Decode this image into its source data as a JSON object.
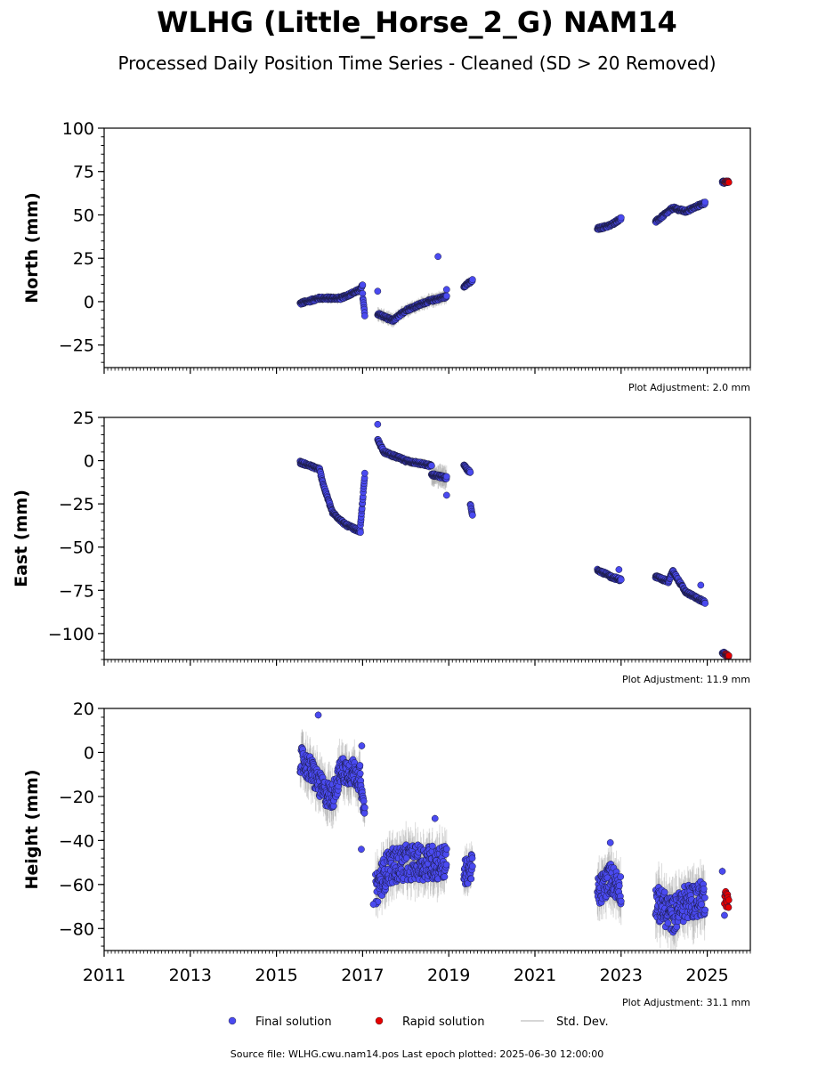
{
  "title": "WLHG (Little_Horse_2_G) NAM14",
  "subtitle": "Processed Daily Position Time Series - Cleaned (SD > 20 Removed)",
  "source": "Source file: WLHG.cwu.nam14.pos  Last epoch plotted: 2025-06-30 12:00:00",
  "legend": [
    {
      "label": "Final solution",
      "color": "#4a4af0"
    },
    {
      "label": "Rapid solution",
      "color": "#e60000"
    },
    {
      "label": "Std. Dev.",
      "color": "#c8c8c8"
    }
  ],
  "colors": {
    "final": "#4a4af0",
    "rapid": "#e60000",
    "stddev": "#9a9a9a"
  },
  "chart_data": [
    {
      "type": "scatter",
      "ylabel": "North (mm)",
      "adjustment": "Plot Adjustment: 2.0 mm",
      "xlim": [
        2011,
        2026
      ],
      "ylim": [
        -38,
        100
      ],
      "yticks": [
        -25,
        0,
        25,
        50,
        75,
        100
      ],
      "ytick_labels": [
        "−25",
        "0",
        "25",
        "50",
        "75",
        "100"
      ],
      "final_segments": [
        {
          "t": [
            2015.55,
            2016.0,
            2016.5,
            2016.95,
            2017.0
          ],
          "y": [
            -1,
            2,
            2,
            7,
            9.5
          ],
          "sd": 2
        },
        {
          "t": [
            2017.0,
            2017.05
          ],
          "y": [
            4,
            -8
          ],
          "sd": 2
        },
        {
          "t": [
            2017.35,
            2017.7,
            2018.0,
            2018.5,
            2018.95
          ],
          "y": [
            -7,
            -11,
            -5,
            0,
            3
          ],
          "sd": 3
        },
        {
          "t": [
            2019.35,
            2019.55
          ],
          "y": [
            9,
            12
          ],
          "sd": 2
        },
        {
          "t": [
            2022.45,
            2022.75,
            2023.0
          ],
          "y": [
            42,
            44,
            48
          ],
          "sd": 1.5
        },
        {
          "t": [
            2023.8,
            2024.2,
            2024.5,
            2024.95
          ],
          "y": [
            46,
            54,
            52,
            57
          ],
          "sd": 1.5
        },
        {
          "t": [
            2025.35,
            2025.4
          ],
          "y": [
            69,
            68.5
          ],
          "sd": 1.5
        }
      ],
      "final_outliers": [
        [
          2017.35,
          6
        ],
        [
          2018.75,
          26
        ],
        [
          2018.95,
          7
        ]
      ],
      "rapid": {
        "t": [
          2025.4,
          2025.5
        ],
        "y": [
          69,
          69
        ]
      }
    },
    {
      "type": "scatter",
      "ylabel": "East (mm)",
      "adjustment": "Plot Adjustment: 11.9 mm",
      "xlim": [
        2011,
        2026
      ],
      "ylim": [
        -115,
        25
      ],
      "yticks": [
        -100,
        -75,
        -50,
        -25,
        0,
        25
      ],
      "ytick_labels": [
        "−100",
        "−75",
        "−50",
        "−25",
        "0",
        "25"
      ],
      "final_segments": [
        {
          "t": [
            2015.55,
            2016.0,
            2016.1,
            2016.3,
            2016.6,
            2016.95
          ],
          "y": [
            -1,
            -5,
            -15,
            -30,
            -37,
            -41
          ],
          "sd": 1.5
        },
        {
          "t": [
            2016.95,
            2017.05
          ],
          "y": [
            -38,
            -8
          ],
          "sd": 1.5
        },
        {
          "t": [
            2017.35,
            2017.5,
            2018.0,
            2018.6
          ],
          "y": [
            12,
            5,
            0,
            -3
          ],
          "sd": 2
        },
        {
          "t": [
            2018.6,
            2018.95
          ],
          "y": [
            -8,
            -10
          ],
          "sd": 5
        },
        {
          "t": [
            2019.35,
            2019.5
          ],
          "y": [
            -3,
            -7
          ],
          "sd": 2
        },
        {
          "t": [
            2019.5,
            2019.55
          ],
          "y": [
            -25,
            -32
          ],
          "sd": 2
        },
        {
          "t": [
            2022.45,
            2022.75,
            2023.0
          ],
          "y": [
            -63,
            -67,
            -69
          ],
          "sd": 1.5
        },
        {
          "t": [
            2023.8,
            2024.1,
            2024.2,
            2024.5,
            2024.95
          ],
          "y": [
            -67,
            -70,
            -64,
            -76,
            -82
          ],
          "sd": 1.5
        },
        {
          "t": [
            2025.35,
            2025.42
          ],
          "y": [
            -111,
            -112
          ],
          "sd": 1.5
        }
      ],
      "final_outliers": [
        [
          2017.35,
          21
        ],
        [
          2018.95,
          -20
        ],
        [
          2022.95,
          -63
        ],
        [
          2024.85,
          -72
        ]
      ],
      "rapid": {
        "t": [
          2025.42,
          2025.5
        ],
        "y": [
          -112,
          -113
        ]
      }
    },
    {
      "type": "scatter",
      "ylabel": "Height (mm)",
      "adjustment": "Plot Adjustment: 31.1 mm",
      "xlim": [
        2011,
        2026
      ],
      "ylim": [
        -90,
        20
      ],
      "yticks": [
        -80,
        -60,
        -40,
        -20,
        0,
        20
      ],
      "ytick_labels": [
        "−80",
        "−60",
        "−40",
        "−20",
        "0",
        "20"
      ],
      "xticks": [
        2011,
        2013,
        2015,
        2017,
        2019,
        2021,
        2023,
        2025
      ],
      "xtick_labels": [
        "2011",
        "2013",
        "2015",
        "2017",
        "2019",
        "2021",
        "2023",
        "2025"
      ],
      "final_segments": [
        {
          "t": [
            2015.55,
            2015.8,
            2016.1,
            2016.3,
            2016.5,
            2016.8,
            2016.95
          ],
          "y": [
            -3,
            -8,
            -18,
            -20,
            -8,
            -9,
            -12
          ],
          "sd": 8,
          "noise": 12
        },
        {
          "t": [
            2016.95,
            2017.05
          ],
          "y": [
            -15,
            -28
          ],
          "sd": 6,
          "noise": 6
        },
        {
          "t": [
            2017.3,
            2017.6,
            2018.0,
            2018.5,
            2018.95
          ],
          "y": [
            -62,
            -52,
            -50,
            -50,
            -50
          ],
          "sd": 8,
          "noise": 16
        },
        {
          "t": [
            2019.35,
            2019.55
          ],
          "y": [
            -55,
            -52
          ],
          "sd": 6,
          "noise": 12
        },
        {
          "t": [
            2022.45,
            2022.75,
            2023.0
          ],
          "y": [
            -64,
            -57,
            -62
          ],
          "sd": 8,
          "noise": 14
        },
        {
          "t": [
            2023.8,
            2024.2,
            2024.5,
            2024.95
          ],
          "y": [
            -68,
            -74,
            -68,
            -66
          ],
          "sd": 9,
          "noise": 16
        }
      ],
      "final_outliers": [
        [
          2015.97,
          17
        ],
        [
          2016.98,
          3
        ],
        [
          2016.97,
          -44
        ],
        [
          2017.25,
          -69
        ],
        [
          2018.68,
          -30
        ],
        [
          2022.75,
          -41
        ],
        [
          2025.35,
          -54
        ],
        [
          2025.4,
          -74
        ]
      ],
      "rapid": {
        "t": [
          2025.4,
          2025.5
        ],
        "y": [
          -65,
          -68
        ]
      }
    }
  ]
}
